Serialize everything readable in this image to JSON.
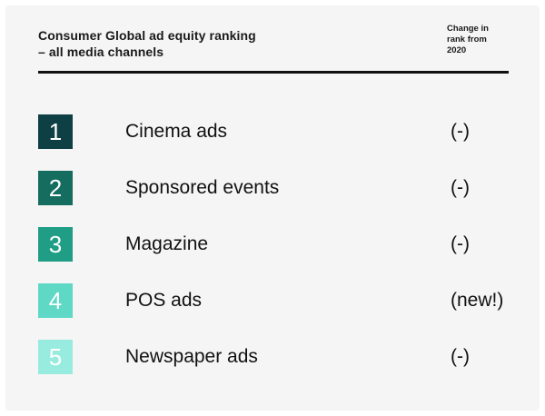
{
  "header": {
    "title_line1": "Consumer Global ad equity ranking",
    "title_line2": "– all media channels",
    "change_line1": "Change in",
    "change_line2": "rank from",
    "change_line3": "2020"
  },
  "rows": [
    {
      "rank": "1",
      "label": "Cinema ads",
      "change": "(-)",
      "color": "#0e3f45"
    },
    {
      "rank": "2",
      "label": "Sponsored events",
      "change": "(-)",
      "color": "#156d5f"
    },
    {
      "rank": "3",
      "label": "Magazine",
      "change": "(-)",
      "color": "#1f9e85"
    },
    {
      "rank": "4",
      "label": "POS ads",
      "change": "(new!)",
      "color": "#5fd9c6"
    },
    {
      "rank": "5",
      "label": "Newspaper ads",
      "change": "(-)",
      "color": "#97ecdf"
    }
  ]
}
